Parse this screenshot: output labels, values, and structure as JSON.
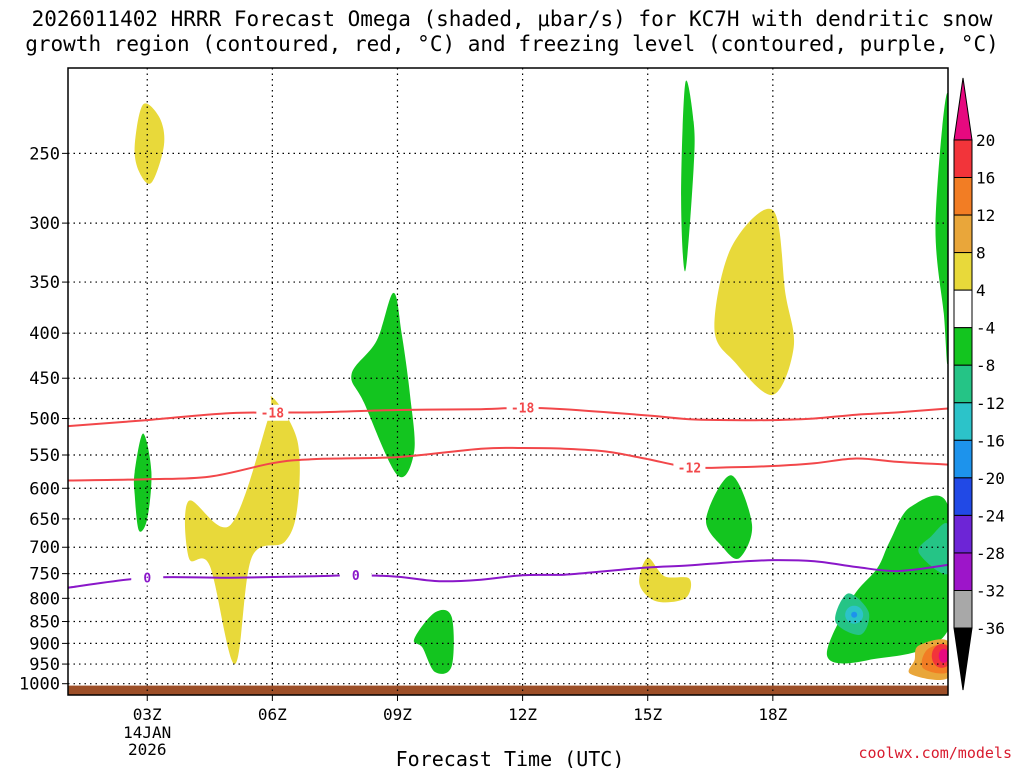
{
  "title": {
    "line1": "2026011402 HRRR Forecast Omega (shaded, μbar/s) for KC7H with dendritic snow",
    "line2": "growth region (contoured, red, °C) and freezing level (contoured, purple, °C)"
  },
  "credit": "coolwx.com/models",
  "chart_data": {
    "type": "area",
    "title": "2026011402 HRRR Forecast Omega (shaded, μbar/s) for KC7H with dendritic snow growth region (contoured, red, °C) and freezing level (contoured, purple, °C)",
    "xlabel": "Forecast Time (UTC)",
    "ylabel": "",
    "xlim": [
      1.1,
      22.2
    ],
    "x_ticks": [
      {
        "value": 3,
        "label": "03Z"
      },
      {
        "value": 6,
        "label": "06Z"
      },
      {
        "value": 9,
        "label": "09Z"
      },
      {
        "value": 12,
        "label": "12Z"
      },
      {
        "value": 15,
        "label": "15Z"
      },
      {
        "value": 18,
        "label": "18Z"
      }
    ],
    "date_label": {
      "line1": "14JAN",
      "line2": "2026"
    },
    "ylim": [
      200,
      1030
    ],
    "y_ticks": [
      250,
      300,
      350,
      400,
      450,
      500,
      550,
      600,
      650,
      700,
      750,
      800,
      850,
      900,
      950,
      1000
    ],
    "y_tick_labels": [
      "250",
      "300",
      "350",
      "400",
      "450",
      "500",
      "550",
      "600",
      "650",
      "700",
      "750",
      "800",
      "850",
      "900",
      "950",
      "1000"
    ],
    "grid": true,
    "colorbar": {
      "labels": [
        "20",
        "16",
        "12",
        "8",
        "4",
        "-4",
        "-8",
        "-12",
        "-16",
        "-20",
        "-24",
        "-28",
        "-32",
        "-36"
      ],
      "colors": [
        "#e6097f",
        "#f2343a",
        "#f27d24",
        "#e9a63a",
        "#e8d93a",
        "#ffffff",
        "#13c51f",
        "#25c486",
        "#2cc3c9",
        "#1d93ec",
        "#2149e6",
        "#6d25d6",
        "#9d15c9",
        "#a8a8a8",
        "#000000"
      ]
    },
    "contours": [
      {
        "name": "-18 C",
        "label": "-18",
        "color": "#f2474a",
        "x": [
          1.1,
          3,
          5,
          7,
          9,
          11,
          12,
          13,
          15,
          16,
          17,
          18,
          19,
          20,
          21,
          22.2
        ],
        "y": [
          510,
          502,
          493,
          492,
          489,
          488,
          486,
          488,
          496,
          501,
          502,
          502,
          500,
          495,
          492,
          487
        ]
      },
      {
        "name": "-12 C",
        "label": "-12",
        "color": "#f2474a",
        "x": [
          1.1,
          3,
          4.5,
          6,
          7,
          9,
          11,
          12,
          13,
          14,
          15,
          16,
          17,
          18,
          19,
          20,
          21,
          22.2
        ],
        "y": [
          588,
          586,
          582,
          562,
          556,
          553,
          541,
          540,
          541,
          545,
          556,
          568,
          568,
          566,
          562,
          555,
          560,
          564
        ]
      },
      {
        "name": "0 C (freezing level)",
        "label": "0",
        "color": "#8a17c9",
        "x": [
          1.1,
          3,
          5,
          7,
          8,
          9,
          10,
          11,
          12,
          13,
          14,
          15,
          16,
          17,
          18,
          19,
          20,
          21,
          22.2
        ],
        "y": [
          778,
          758,
          758,
          755,
          753,
          756,
          765,
          762,
          753,
          752,
          745,
          738,
          734,
          728,
          724,
          726,
          737,
          745,
          733
        ]
      }
    ],
    "shaded_regions": [
      {
        "category": "4",
        "x": [
          2.9,
          3.3,
          3.4,
          3.1,
          2.8,
          2.7
        ],
        "y": [
          220,
          228,
          245,
          270,
          262,
          245
        ]
      },
      {
        "category": "-8",
        "x": [
          2.7,
          2.9,
          3.1,
          3.0,
          2.8,
          2.7
        ],
        "y": [
          575,
          520,
          575,
          650,
          670,
          610
        ]
      },
      {
        "category": "4",
        "x": [
          4.0,
          5.0,
          5.9,
          6.0,
          6.6,
          6.6,
          6.3,
          5.5,
          5.1,
          4.5,
          4.0
        ],
        "y": [
          620,
          660,
          500,
          473,
          530,
          630,
          690,
          720,
          950,
          735,
          720
        ]
      },
      {
        "category": "-8",
        "x": [
          8.9,
          8.5,
          7.9,
          8.2,
          9.0,
          9.4,
          9.3,
          9.1
        ],
        "y": [
          360,
          408,
          445,
          480,
          580,
          545,
          470,
          400
        ]
      },
      {
        "category": "-8",
        "x": [
          9.4,
          9.9,
          10.3,
          10.3,
          9.9,
          9.6
        ],
        "y": [
          890,
          830,
          840,
          955,
          970,
          910
        ]
      },
      {
        "category": "-8",
        "x": [
          15.9,
          16.1,
          16.1,
          15.9,
          15.8
        ],
        "y": [
          208,
          230,
          260,
          340,
          280
        ]
      },
      {
        "category": "4",
        "x": [
          18.0,
          18.3,
          18.5,
          18.0,
          17.1,
          16.6,
          17.0
        ],
        "y": [
          290,
          360,
          415,
          470,
          432,
          395,
          320
        ]
      },
      {
        "category": "-8",
        "x": [
          17.0,
          17.5,
          17.2,
          16.8,
          16.4
        ],
        "y": [
          580,
          660,
          720,
          700,
          650
        ]
      },
      {
        "category": "4",
        "x": [
          15.0,
          15.4,
          16.0,
          15.9,
          15.2,
          14.8
        ],
        "y": [
          720,
          755,
          760,
          800,
          806,
          770
        ]
      },
      {
        "category": "-8",
        "x": [
          22.2,
          21.9,
          22.1,
          22.2
        ],
        "y": [
          215,
          300,
          380,
          420
        ]
      },
      {
        "category": "-8",
        "x": [
          21.3,
          22.2,
          22.2,
          20.3,
          19.3,
          19.9,
          20.5,
          20.8
        ],
        "y": [
          630,
          628,
          870,
          940,
          930,
          800,
          740,
          690
        ]
      },
      {
        "category": "-12",
        "x": [
          21.8,
          22.2,
          22.2,
          21.5
        ],
        "y": [
          680,
          660,
          750,
          710
        ]
      },
      {
        "category": "-12",
        "x": [
          19.8,
          20.3,
          20.1,
          19.5
        ],
        "y": [
          790,
          830,
          880,
          850
        ]
      },
      {
        "category": "8",
        "x": [
          21.5,
          22.2,
          22.2,
          21.3,
          21.4
        ],
        "y": [
          905,
          895,
          985,
          975,
          940
        ]
      },
      {
        "category": "12",
        "x": [
          21.7,
          22.2,
          22.2,
          21.6
        ],
        "y": [
          915,
          905,
          970,
          960
        ]
      },
      {
        "category": "4",
        "x": [
          6.0,
          6.1,
          6.1,
          6.0,
          5.9
        ],
        "y": [
          570,
          578,
          620,
          638,
          600
        ]
      }
    ],
    "terrain_color": "#9d4f28"
  }
}
